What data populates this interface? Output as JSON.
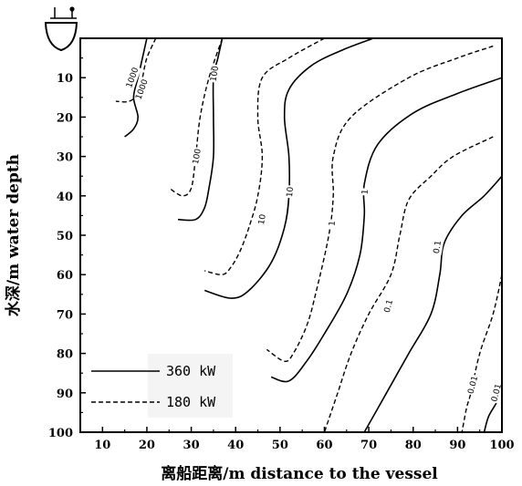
{
  "chart_data": {
    "type": "contour",
    "xlabel": "离船距离/m distance to the vessel",
    "ylabel": "水深/m water depth",
    "xlim": [
      5,
      100
    ],
    "ylim": [
      0,
      100
    ],
    "y_inverted": true,
    "xticks": [
      10,
      20,
      30,
      40,
      50,
      60,
      70,
      80,
      90,
      100
    ],
    "yticks": [
      10,
      20,
      30,
      40,
      50,
      60,
      70,
      80,
      90,
      100
    ],
    "legend_position": "bottom-left",
    "series": [
      {
        "name": "360 kW",
        "style": "solid"
      },
      {
        "name": "180 kW",
        "style": "dashed"
      }
    ],
    "contours": [
      {
        "power": "360 kW",
        "level": "1000",
        "points": [
          [
            20,
            0
          ],
          [
            19,
            5
          ],
          [
            18,
            10
          ],
          [
            17,
            15
          ],
          [
            18,
            20
          ],
          [
            17,
            23
          ],
          [
            15,
            25
          ]
        ]
      },
      {
        "power": "180 kW",
        "level": "1000",
        "points": [
          [
            22,
            0
          ],
          [
            20,
            5
          ],
          [
            19,
            10
          ],
          [
            18,
            14
          ],
          [
            16,
            16
          ],
          [
            13,
            16
          ]
        ]
      },
      {
        "power": "360 kW",
        "level": "100",
        "points": [
          [
            37,
            0
          ],
          [
            36,
            5
          ],
          [
            35,
            10
          ],
          [
            35,
            20
          ],
          [
            35,
            30
          ],
          [
            34,
            38
          ],
          [
            33,
            43
          ],
          [
            31,
            46
          ],
          [
            27,
            46
          ]
        ]
      },
      {
        "power": "180 kW",
        "level": "100",
        "points": [
          [
            37,
            0
          ],
          [
            34,
            10
          ],
          [
            32,
            20
          ],
          [
            31,
            30
          ],
          [
            30,
            38
          ],
          [
            28,
            40
          ],
          [
            25,
            38
          ]
        ]
      },
      {
        "power": "360 kW",
        "level": "10",
        "points": [
          [
            71,
            0
          ],
          [
            64,
            3
          ],
          [
            57,
            7
          ],
          [
            52,
            13
          ],
          [
            51,
            20
          ],
          [
            52,
            30
          ],
          [
            52,
            40
          ],
          [
            51,
            48
          ],
          [
            48,
            57
          ],
          [
            43,
            64
          ],
          [
            39,
            66
          ],
          [
            33,
            64
          ]
        ]
      },
      {
        "power": "180 kW",
        "level": "10",
        "points": [
          [
            60,
            0
          ],
          [
            52,
            5
          ],
          [
            46,
            10
          ],
          [
            45,
            20
          ],
          [
            46,
            30
          ],
          [
            45,
            40
          ],
          [
            43,
            48
          ],
          [
            41,
            54
          ],
          [
            39,
            58
          ],
          [
            37,
            60
          ],
          [
            33,
            59
          ]
        ]
      },
      {
        "power": "360 kW",
        "level": "1",
        "points": [
          [
            100,
            10
          ],
          [
            90,
            14
          ],
          [
            80,
            19
          ],
          [
            72,
            27
          ],
          [
            69,
            37
          ],
          [
            69,
            45
          ],
          [
            68,
            55
          ],
          [
            65,
            65
          ],
          [
            60,
            75
          ],
          [
            56,
            82
          ],
          [
            52,
            87
          ],
          [
            48,
            86
          ]
        ]
      },
      {
        "power": "180 kW",
        "level": "1",
        "points": [
          [
            98,
            2
          ],
          [
            90,
            5
          ],
          [
            79,
            10
          ],
          [
            66,
            20
          ],
          [
            62,
            30
          ],
          [
            62,
            40
          ],
          [
            61,
            50
          ],
          [
            58,
            65
          ],
          [
            56,
            73
          ],
          [
            53,
            80
          ],
          [
            51,
            82
          ],
          [
            47,
            79
          ]
        ]
      },
      {
        "power": "360 kW",
        "level": "0.1",
        "points": [
          [
            100,
            35
          ],
          [
            96,
            40
          ],
          [
            91,
            45
          ],
          [
            87,
            52
          ],
          [
            86,
            60
          ],
          [
            84,
            70
          ],
          [
            79,
            80
          ],
          [
            74,
            90
          ],
          [
            69,
            100
          ]
        ]
      },
      {
        "power": "180 kW",
        "level": "0.1",
        "points": [
          [
            98,
            25
          ],
          [
            89,
            30
          ],
          [
            84,
            35
          ],
          [
            79,
            41
          ],
          [
            77,
            50
          ],
          [
            75,
            60
          ],
          [
            70,
            70
          ],
          [
            66,
            80
          ],
          [
            63,
            90
          ],
          [
            60,
            100
          ]
        ]
      },
      {
        "power": "360 kW",
        "level": "0.01",
        "points": [
          [
            100,
            88
          ],
          [
            99,
            92
          ],
          [
            97,
            96
          ],
          [
            96,
            100
          ]
        ]
      },
      {
        "power": "180 kW",
        "level": "0.01",
        "points": [
          [
            100,
            60
          ],
          [
            98,
            70
          ],
          [
            95,
            80
          ],
          [
            93,
            90
          ],
          [
            92,
            94
          ],
          [
            91,
            100
          ]
        ]
      }
    ],
    "contour_labels": [
      {
        "text": "1000",
        "x": 16.8,
        "y": 10,
        "angle": -70
      },
      {
        "text": "1000",
        "x": 18.9,
        "y": 13,
        "angle": -70
      },
      {
        "text": "100",
        "x": 35.3,
        "y": 9,
        "angle": -80
      },
      {
        "text": "100",
        "x": 31.3,
        "y": 30,
        "angle": -80
      },
      {
        "text": "10",
        "x": 52.3,
        "y": 39,
        "angle": -85
      },
      {
        "text": "10",
        "x": 46,
        "y": 46,
        "angle": -80
      },
      {
        "text": "1",
        "x": 69.2,
        "y": 39,
        "angle": -85
      },
      {
        "text": "1",
        "x": 61.8,
        "y": 47,
        "angle": -85
      },
      {
        "text": "0.1",
        "x": 85.5,
        "y": 53,
        "angle": -80
      },
      {
        "text": "0.1",
        "x": 74.5,
        "y": 68,
        "angle": -75
      },
      {
        "text": "0.01",
        "x": 93.5,
        "y": 88,
        "angle": -75
      },
      {
        "text": "0.01",
        "x": 98.8,
        "y": 90,
        "angle": -75
      }
    ]
  }
}
